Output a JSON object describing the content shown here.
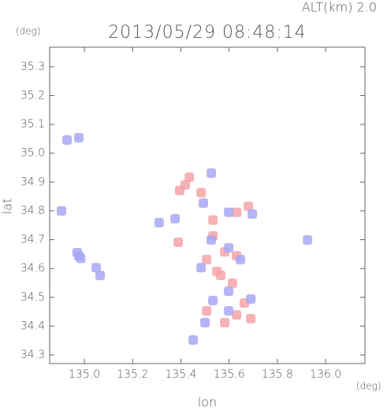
{
  "chart_data": {
    "type": "scatter",
    "title": "2013/05/29 08:48:14",
    "annotation": "ALT(km) 2.0",
    "y_unit": "(deg)",
    "x_unit": "(deg)",
    "x_label": "lon",
    "y_label": "lat",
    "xlim": [
      134.856,
      136.163
    ],
    "ylim": [
      34.27,
      35.368
    ],
    "xticks": [
      {
        "value": 135.0,
        "label": "135.0"
      },
      135.2,
      135.4,
      135.6,
      135.8,
      {
        "value": 136.0,
        "label": "136.0"
      }
    ],
    "yticks": [
      34.3,
      34.4,
      34.5,
      34.6,
      34.7,
      34.8,
      34.9,
      {
        "value": 35.0,
        "label": "35.0"
      },
      35.1,
      35.2,
      35.3
    ],
    "series": [
      {
        "color": "#f4a4a8",
        "x": [
          135.418,
          135.395,
          135.435,
          135.484,
          135.631,
          135.68,
          135.533,
          135.582,
          135.631,
          135.507,
          135.549,
          135.614,
          135.663,
          135.631,
          135.582,
          135.507,
          135.69,
          135.389,
          135.565,
          135.533
        ],
        "values": [
          34.89,
          34.871,
          34.917,
          34.863,
          34.795,
          34.816,
          34.713,
          34.658,
          34.644,
          34.631,
          34.59,
          34.549,
          34.48,
          34.439,
          34.412,
          34.453,
          34.426,
          34.691,
          34.576,
          34.768
        ]
      },
      {
        "color": "#a8a8f4",
        "x": [
          134.977,
          134.97,
          134.985,
          134.905,
          134.977,
          134.928,
          135.049,
          135.065,
          135.526,
          135.493,
          135.598,
          135.696,
          135.526,
          135.598,
          135.647,
          135.484,
          135.598,
          135.533,
          135.69,
          135.5,
          135.598,
          135.451,
          135.376,
          135.925,
          135.31
        ],
        "values": [
          34.644,
          34.655,
          34.635,
          34.8,
          35.054,
          35.046,
          34.603,
          34.576,
          34.931,
          34.827,
          34.795,
          34.789,
          34.699,
          34.672,
          34.631,
          34.603,
          34.521,
          34.489,
          34.494,
          34.412,
          34.453,
          34.352,
          34.773,
          34.699,
          34.759
        ]
      }
    ]
  }
}
